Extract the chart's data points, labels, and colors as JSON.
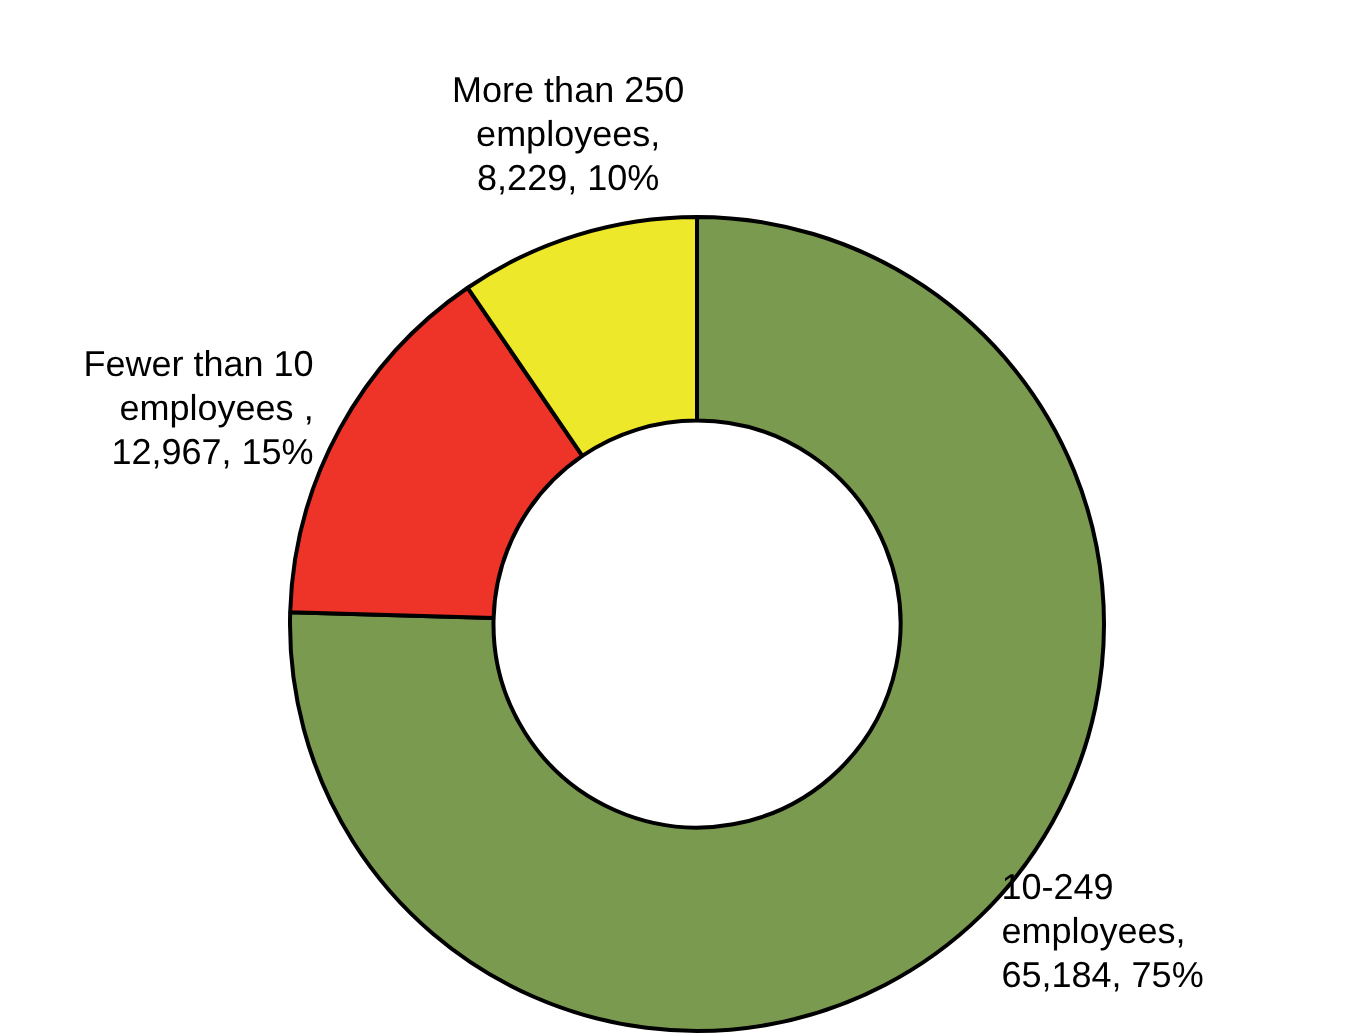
{
  "chart_data": {
    "type": "donut",
    "categories": [
      "10-249 employees",
      "Fewer than 10 employees ",
      "More than 250 employees"
    ],
    "values": [
      65184,
      12967,
      8229
    ],
    "colors": [
      "#7a9a4f",
      "#ee3329",
      "#eee82a"
    ],
    "value_labels": [
      ", 65,184, 75%",
      ", 12,967, 15%",
      ", 8,229, 10%"
    ]
  }
}
